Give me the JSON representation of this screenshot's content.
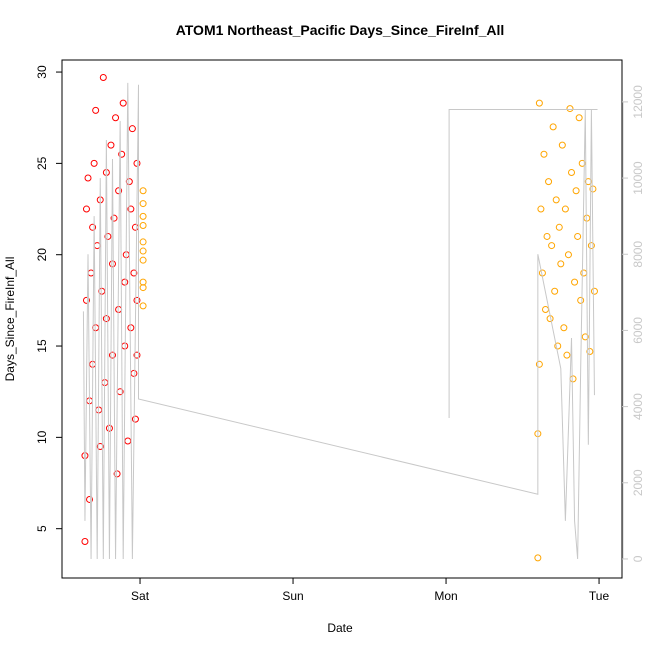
{
  "chart_data": {
    "type": "scatter",
    "title": "ATOM1 Northeast_Pacific Days_Since_FireInf_All",
    "x_label": "Date",
    "y_label": "Days_Since_FireInf_All",
    "xlim": [
      -0.51,
      3.15
    ],
    "xticks": [
      {
        "value": 0,
        "label": "Sat"
      },
      {
        "value": 1,
        "label": "Sun"
      },
      {
        "value": 2,
        "label": "Mon"
      },
      {
        "value": 3,
        "label": "Tue"
      }
    ],
    "ylim": [
      2.3,
      30.66
    ],
    "yticks": [
      5,
      10,
      15,
      20,
      25,
      30
    ],
    "y2lim": [
      -500,
      13100
    ],
    "y2ticks": [
      0,
      2000,
      4000,
      6000,
      8000,
      10000,
      12000
    ],
    "y2color": "#c8c8c8",
    "series": [
      {
        "color": "#ff0000",
        "x": [
          -0.36,
          -0.36,
          -0.35,
          -0.35,
          -0.34,
          -0.33,
          -0.33,
          -0.32,
          -0.31,
          -0.31,
          -0.3,
          -0.29,
          -0.29,
          -0.28,
          -0.27,
          -0.26,
          -0.26,
          -0.25,
          -0.24,
          -0.23,
          -0.22,
          -0.22,
          -0.21,
          -0.2,
          -0.19,
          -0.18,
          -0.18,
          -0.17,
          -0.16,
          -0.15,
          -0.14,
          -0.14,
          -0.13,
          -0.12,
          -0.11,
          -0.1,
          -0.1,
          -0.09,
          -0.08,
          -0.07,
          -0.06,
          -0.06,
          -0.05,
          -0.04,
          -0.04,
          -0.03,
          -0.03,
          -0.02,
          -0.02,
          -0.02
        ],
        "values": [
          4.3,
          9.0,
          22.5,
          17.5,
          24.2,
          6.6,
          12.0,
          19.0,
          21.5,
          14.0,
          25.0,
          27.9,
          16.0,
          20.5,
          11.5,
          23.0,
          9.5,
          18.0,
          29.7,
          13.0,
          24.5,
          16.5,
          21.0,
          10.5,
          26.0,
          19.5,
          14.5,
          22.0,
          27.5,
          8.0,
          17.0,
          23.5,
          12.5,
          25.5,
          28.3,
          18.5,
          15.0,
          20.0,
          9.8,
          24.0,
          22.5,
          16.0,
          26.9,
          13.5,
          19.0,
          21.5,
          11.0,
          25.0,
          17.5,
          14.5
        ]
      },
      {
        "color": "#ffa500",
        "x": [
          0.02,
          0.02,
          0.02,
          0.02,
          0.02,
          0.02,
          0.02,
          0.02,
          0.02,
          0.02
        ],
        "values": [
          17.2,
          18.5,
          19.7,
          20.2,
          20.7,
          21.6,
          22.1,
          22.8,
          23.5,
          18.2
        ]
      },
      {
        "color": "#ffa500",
        "x": [
          2.6,
          2.6,
          2.61,
          2.61,
          2.62,
          2.63,
          2.64,
          2.65,
          2.66,
          2.67,
          2.68,
          2.69,
          2.7,
          2.71,
          2.72,
          2.73,
          2.74,
          2.75,
          2.76,
          2.77,
          2.78,
          2.79,
          2.8,
          2.81,
          2.82,
          2.83,
          2.84,
          2.85,
          2.86,
          2.87,
          2.88,
          2.89,
          2.9,
          2.91,
          2.92,
          2.93,
          2.94,
          2.95,
          2.96,
          2.97
        ],
        "values": [
          3.4,
          10.2,
          28.3,
          14.0,
          22.5,
          19.0,
          25.5,
          17.0,
          21.0,
          24.0,
          16.5,
          20.5,
          27.0,
          18.0,
          23.0,
          15.0,
          21.5,
          19.5,
          26.0,
          16.0,
          22.5,
          14.5,
          20.0,
          28.0,
          24.5,
          13.2,
          18.5,
          23.5,
          21.0,
          27.5,
          17.5,
          25.0,
          19.0,
          15.5,
          22.0,
          24.0,
          14.7,
          20.5,
          23.6,
          18.0
        ]
      },
      {
        "color": "#c8c8c8",
        "axis": "y2",
        "line": true,
        "x": [
          -0.37,
          -0.36,
          -0.34,
          -0.32,
          -0.3,
          -0.28,
          -0.26,
          -0.24,
          -0.22,
          -0.2,
          -0.18,
          -0.16,
          -0.13,
          -0.11,
          -0.08,
          -0.05,
          -0.01,
          -0.01,
          2.6,
          2.6,
          2.75,
          2.78,
          2.82,
          2.84,
          2.86,
          2.88,
          2.91,
          2.93,
          2.95,
          2.97,
          2.02,
          2.02,
          2.02,
          2.99
        ],
        "values": [
          6500,
          1000,
          8000,
          0,
          9000,
          0,
          10000,
          0,
          11000,
          0,
          10500,
          0,
          11500,
          0,
          12500,
          0,
          12450,
          4200,
          1700,
          8000,
          5000,
          1000,
          5800,
          1000,
          0,
          5000,
          11800,
          3000,
          11800,
          4300,
          null,
          3700,
          11800,
          11800
        ]
      }
    ]
  }
}
